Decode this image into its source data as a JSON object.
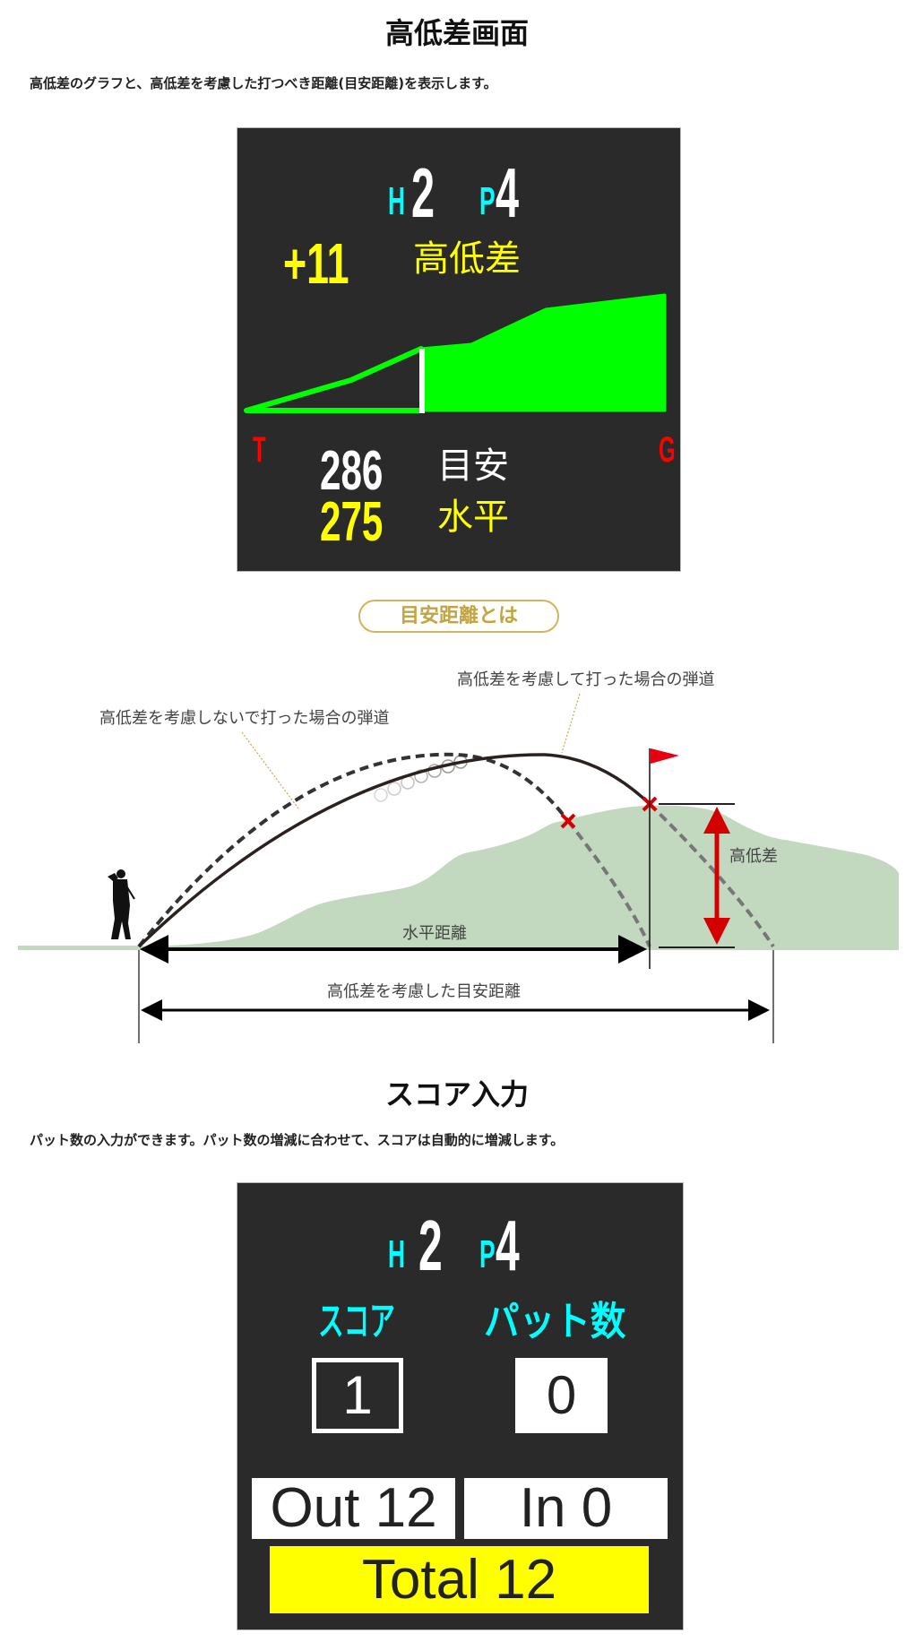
{
  "section1": {
    "title": "高低差画面",
    "description": "高低差のグラフと、高低差を考慮した打つべき距離(目安距離)を表示します。",
    "screen": {
      "hole_prefix": "H",
      "hole": "2",
      "par_prefix": "P",
      "par": "4",
      "elevation_value": "+11",
      "elevation_label": "高低差",
      "tee_marker": "T",
      "green_marker": "G",
      "target_distance": "286",
      "target_label": "目安",
      "horizontal_distance": "275",
      "horizontal_label": "水平"
    },
    "colors": {
      "screen_bg": "#2a2a2a",
      "profile": "#00ff00",
      "hole_prefix": "#00ffff",
      "elevation": "#ffff00",
      "markers": "#ff0000"
    }
  },
  "explainer": {
    "button_label": "目安距離とは",
    "trajectory_with_elevation": "高低差を考慮して打った場合の弾道",
    "trajectory_without_elevation": "高低差を考慮しないで打った場合の弾道",
    "elevation_label": "高低差",
    "horizontal_distance_label": "水平距離",
    "target_distance_label": "高低差を考慮した目安距離"
  },
  "section2": {
    "title": "スコア入力",
    "description": "パット数の入力ができます。パット数の増減に合わせて、スコアは自動的に増減します。",
    "screen": {
      "hole_prefix": "H",
      "hole": "2",
      "par_prefix": "P",
      "par": "4",
      "score_label": "スコア",
      "putts_label": "パット数",
      "score_value": "1",
      "putts_value": "0",
      "out_total": "Out 12",
      "in_total": "In 0",
      "grand_total": "Total 12"
    },
    "colors": {
      "labels": "#00ffff",
      "total_bg": "#ffff00"
    }
  }
}
